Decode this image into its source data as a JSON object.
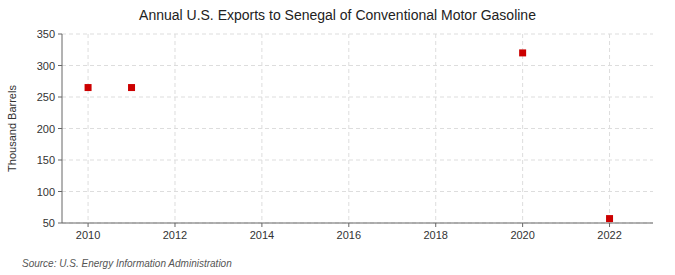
{
  "chart_data": {
    "type": "scatter",
    "title": "Annual U.S. Exports to Senegal of Conventional Motor Gasoline",
    "ylabel": "Thousand Barrels",
    "source": "Source: U.S. Energy Information Administration",
    "x": [
      2010,
      2011,
      2020,
      2022
    ],
    "values": [
      265,
      265,
      320,
      57
    ],
    "color": "#cc0000",
    "marker": "square",
    "xlim": [
      2009.4,
      2023.0
    ],
    "xticks": [
      2010,
      2012,
      2014,
      2016,
      2018,
      2020,
      2022
    ],
    "ylim": [
      50,
      350
    ],
    "yticks": [
      50,
      100,
      150,
      200,
      250,
      300,
      350
    ],
    "grid": true
  }
}
